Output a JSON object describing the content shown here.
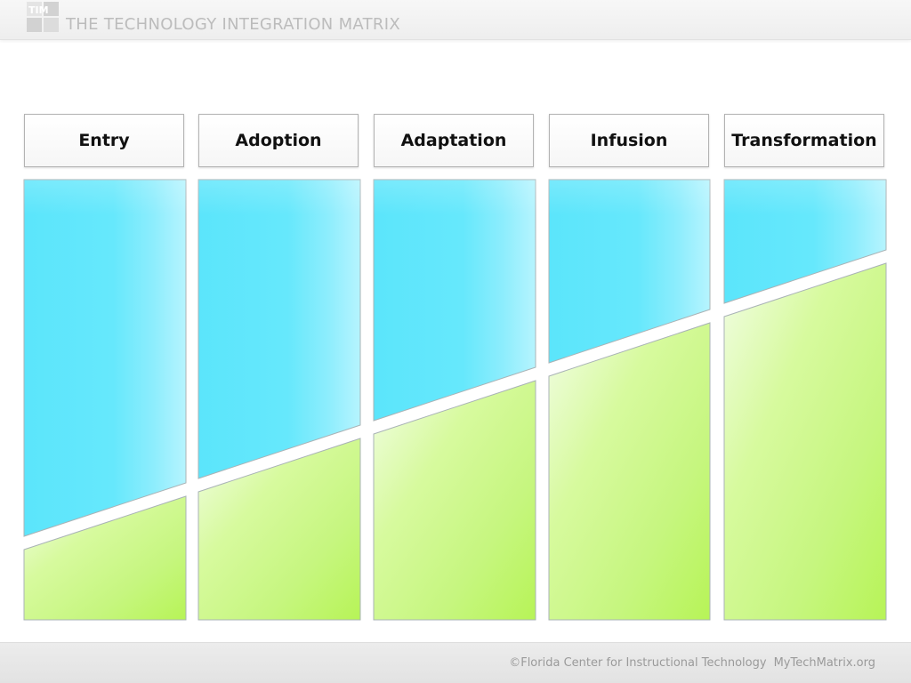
{
  "header": {
    "title": "THE TECHNOLOGY INTEGRATION MATRIX",
    "logo_icon": "tim-logo-icon"
  },
  "stages": [
    {
      "label": "Entry"
    },
    {
      "label": "Adoption"
    },
    {
      "label": "Adaptation"
    },
    {
      "label": "Infusion"
    },
    {
      "label": "Transformation"
    }
  ],
  "diagram": {
    "teacher_share_color": "#5fe6fb",
    "student_share_color": "#c4f77d",
    "divider_color": "#ffffff",
    "border_color": "#aeb4b6"
  },
  "footer": {
    "copyright": "©Florida Center for Instructional Technology",
    "site": "MyTechMatrix.org"
  }
}
